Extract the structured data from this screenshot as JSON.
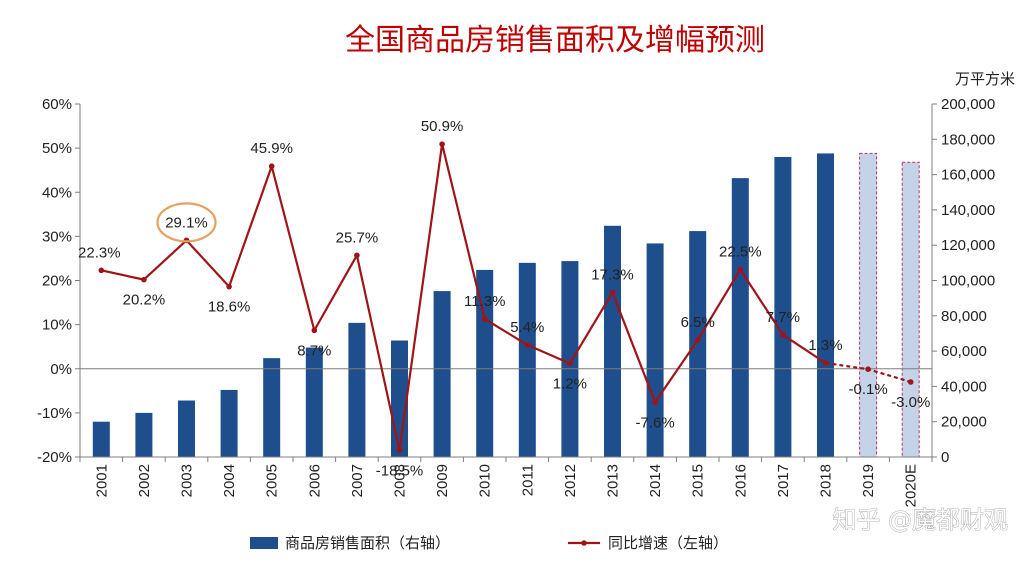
{
  "watermark": "知乎 @魔都财观",
  "colors": {
    "title": "#c00000",
    "bar": "#1f4e8c",
    "bar_forecast_fill": "#c5d3e8",
    "bar_forecast_border": "#c0306a",
    "line": "#a01418",
    "highlight_circle": "#e8a060"
  },
  "chart_data": {
    "type": "bar",
    "title": "全国商品房销售面积及增幅预测",
    "categories": [
      "2001",
      "2002",
      "2003",
      "2004",
      "2005",
      "2006",
      "2007",
      "2008",
      "2009",
      "2010",
      "2011",
      "2012",
      "2013",
      "2014",
      "2015",
      "2016",
      "2017",
      "2018",
      "2019",
      "2020E"
    ],
    "y_left": {
      "range": [
        -20,
        60
      ],
      "ticks": [
        "-20%",
        "-10%",
        "0%",
        "10%",
        "20%",
        "30%",
        "40%",
        "50%",
        "60%"
      ]
    },
    "y_right": {
      "unit": "万平方米",
      "range": [
        0,
        200000
      ],
      "ticks": [
        "0",
        "20,000",
        "40,000",
        "60,000",
        "80,000",
        "100,000",
        "120,000",
        "140,000",
        "160,000",
        "180,000",
        "200,000"
      ]
    },
    "series": [
      {
        "name": "商品房销售面积（右轴）",
        "kind": "bar",
        "axis": "right",
        "values": [
          20000,
          25000,
          32000,
          38000,
          56000,
          62000,
          76000,
          66000,
          94000,
          106000,
          110000,
          111000,
          131000,
          121000,
          128000,
          158000,
          170000,
          172000,
          172000,
          167000
        ],
        "forecast": [
          false,
          false,
          false,
          false,
          false,
          false,
          false,
          false,
          false,
          false,
          false,
          false,
          false,
          false,
          false,
          false,
          false,
          false,
          true,
          true
        ]
      },
      {
        "name": "同比增速（左轴）",
        "kind": "line",
        "axis": "left",
        "values": [
          22.3,
          20.2,
          29.1,
          18.6,
          45.9,
          8.7,
          25.7,
          -18.5,
          50.9,
          11.3,
          5.4,
          1.2,
          17.3,
          -7.6,
          6.5,
          22.5,
          7.7,
          1.3,
          -0.1,
          -3.0
        ],
        "labels": [
          "22.3%",
          "20.2%",
          "29.1%",
          "18.6%",
          "45.9%",
          "8.7%",
          "25.7%",
          "-18.5%",
          "50.9%",
          "11.3%",
          "5.4%",
          "1.2%",
          "17.3%",
          "-7.6%",
          "6.5%",
          "22.5%",
          "7.7%",
          "1.3%",
          "-0.1%",
          "-3.0%"
        ],
        "forecast": [
          false,
          false,
          false,
          false,
          false,
          false,
          false,
          false,
          false,
          false,
          false,
          false,
          false,
          false,
          false,
          false,
          false,
          false,
          true,
          true
        ]
      }
    ],
    "highlighted_label": "29.1%",
    "legend_placement": "bottom",
    "grid": false
  }
}
